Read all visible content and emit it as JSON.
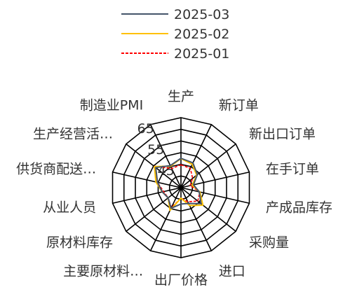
{
  "chart_data": {
    "type": "radar",
    "title": "",
    "categories": [
      "生产",
      "新订单",
      "新出口订单",
      "在手订单",
      "产成品库存",
      "采购量",
      "进口",
      "出厂价格",
      "主要原材料…",
      "原材料库存",
      "从业人员",
      "供货商配送…",
      "生产经营活…",
      "制造业PMI"
    ],
    "radial_ticks": [
      "45",
      "55",
      "65"
    ],
    "rlim": [
      40,
      70
    ],
    "grid": true,
    "legend_position": "top",
    "series": [
      {
        "name": "2025-03",
        "color": "#44546A",
        "dash": "solid",
        "values": [
          52.6,
          51.8,
          49.0,
          45.5,
          48.0,
          51.0,
          47.5,
          47.0,
          49.8,
          47.0,
          48.2,
          50.3,
          53.8,
          50.5
        ]
      },
      {
        "name": "2025-02",
        "color": "#FFC000",
        "dash": "solid",
        "values": [
          52.5,
          51.1,
          48.6,
          44.9,
          48.3,
          52.0,
          48.5,
          44.5,
          50.8,
          47.0,
          48.2,
          51.0,
          54.5,
          50.2
        ]
      },
      {
        "name": "2025-01",
        "color": "#FF0000",
        "dash": "dashed",
        "values": [
          49.8,
          49.2,
          46.4,
          44.0,
          48.3,
          49.2,
          46.7,
          44.5,
          49.5,
          47.0,
          47.6,
          50.3,
          54.8,
          49.1
        ]
      }
    ]
  }
}
